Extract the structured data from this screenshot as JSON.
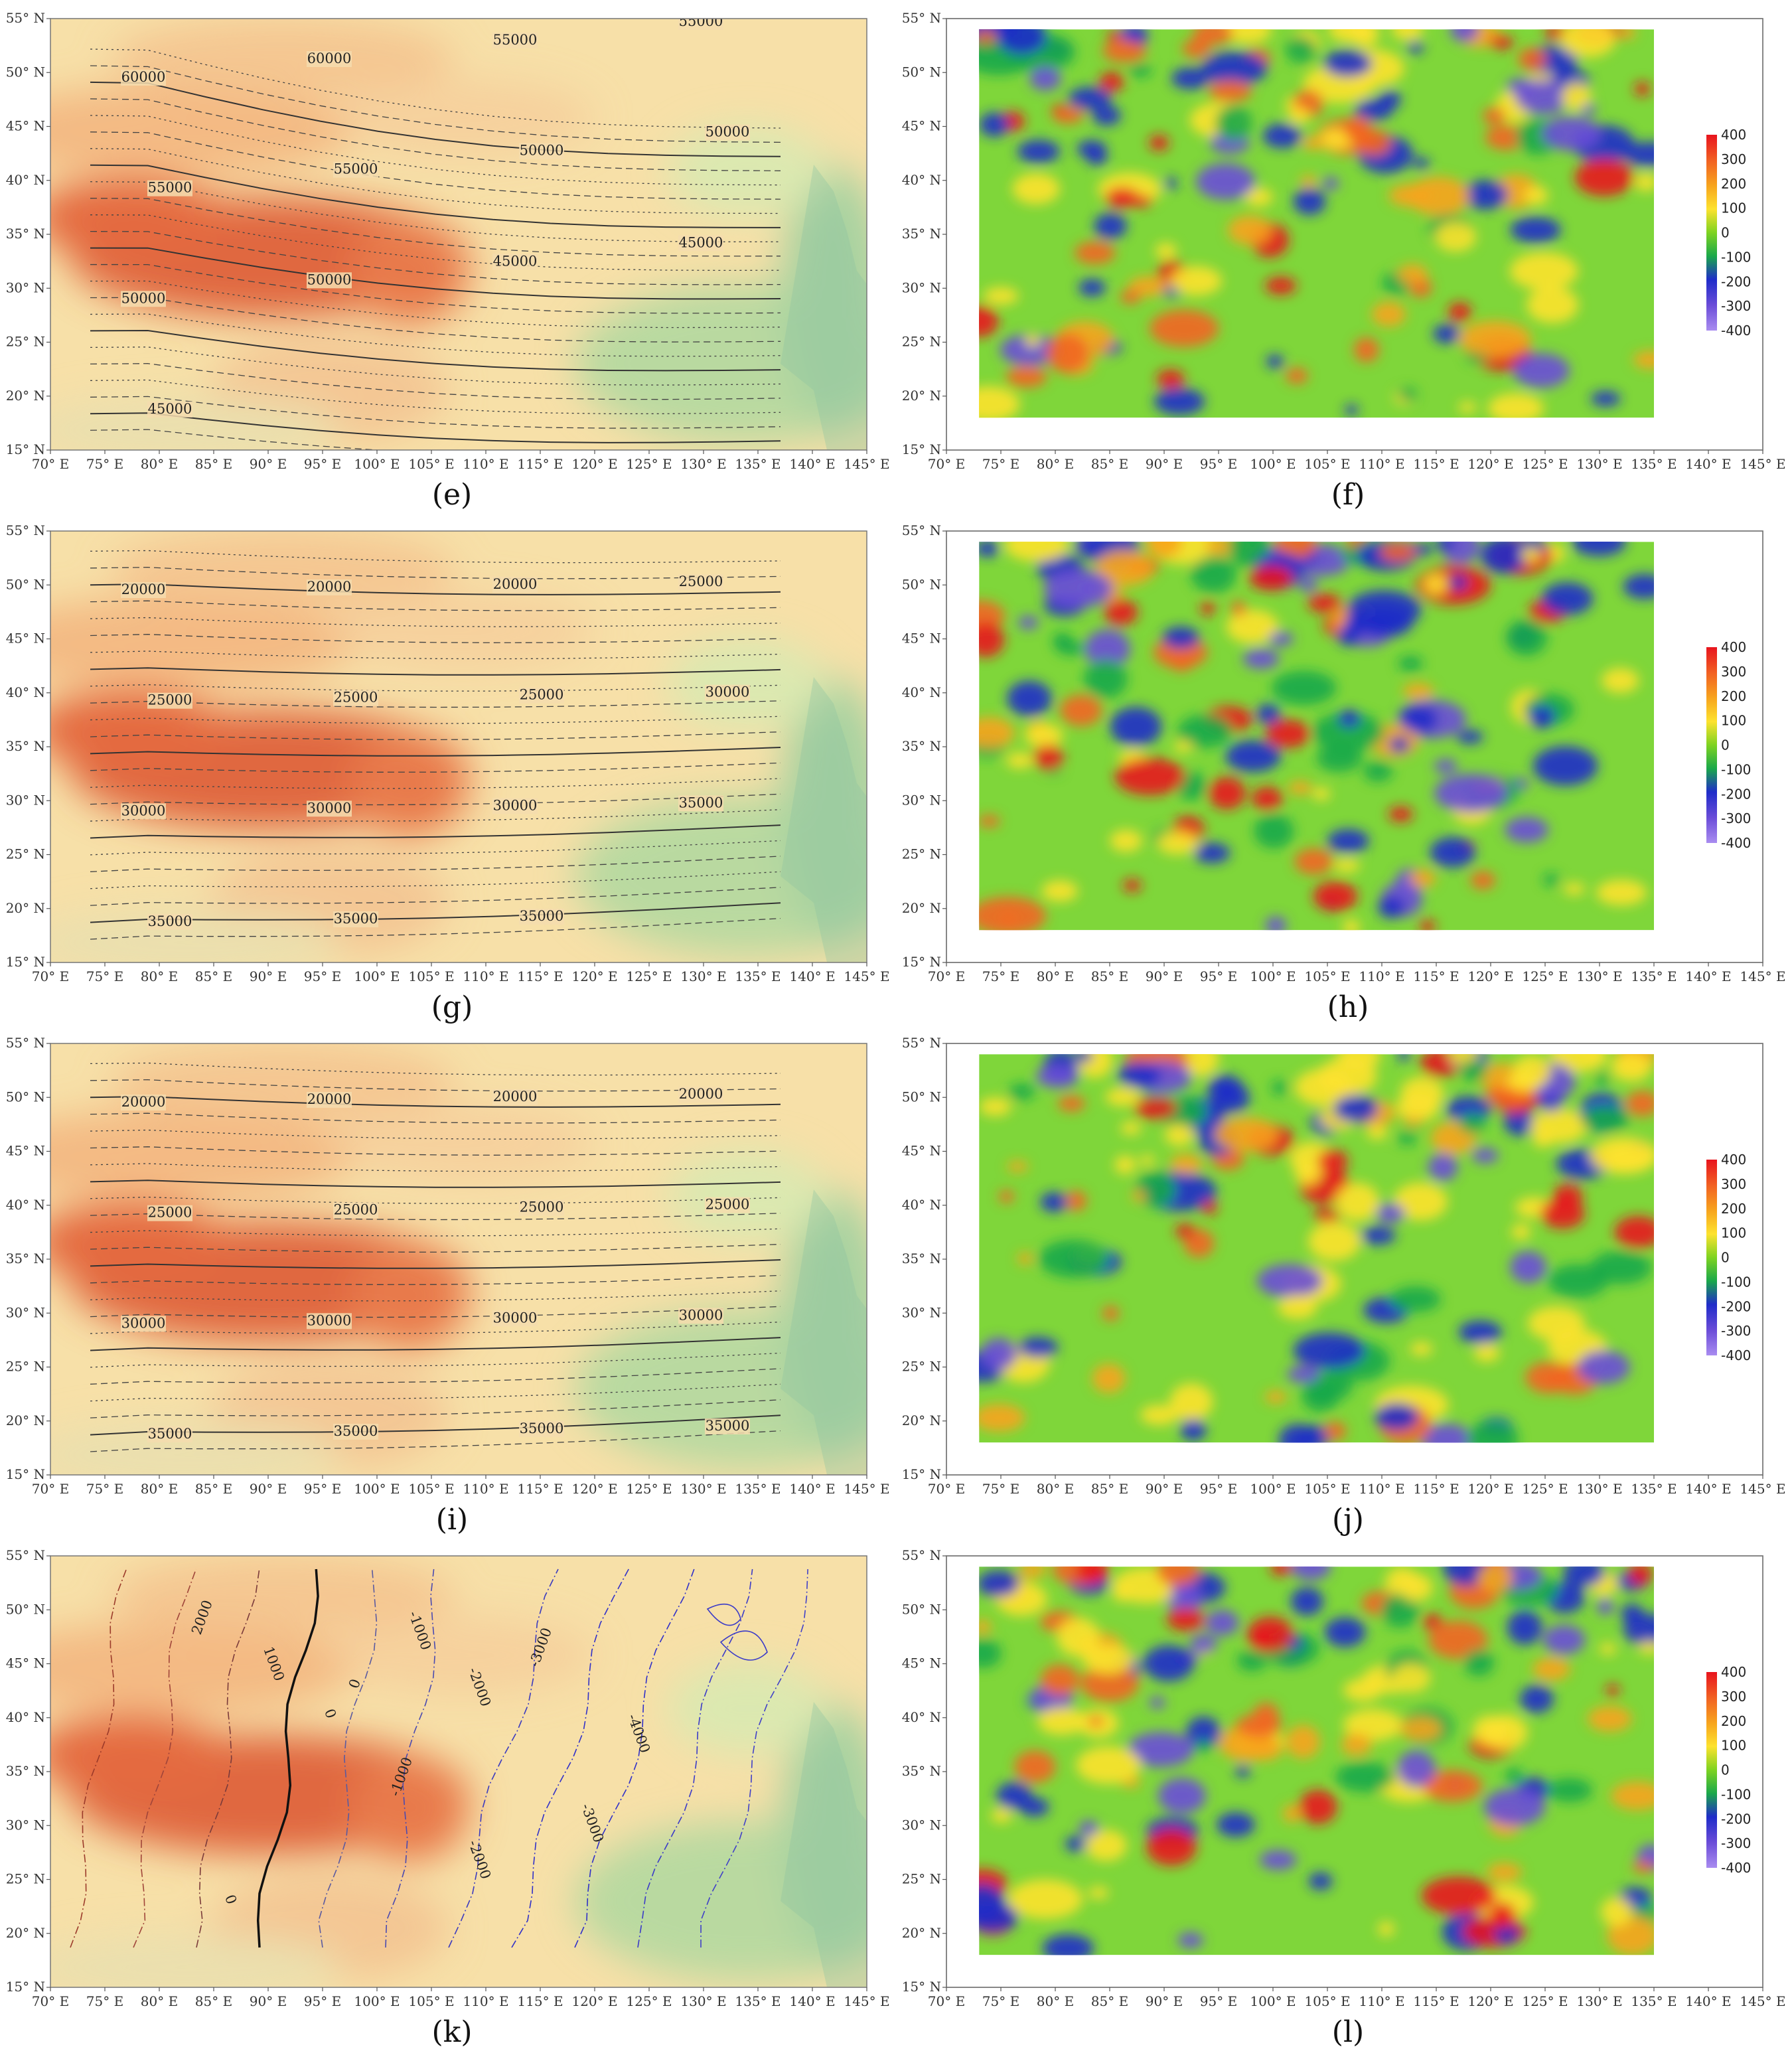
{
  "figure": {
    "lat_ticks": [
      "15° N",
      "20° N",
      "25° N",
      "30° N",
      "35° N",
      "40° N",
      "45° N",
      "50° N",
      "55° N"
    ],
    "lon_ticks": [
      "70° E",
      "75° E",
      "80° E",
      "85° E",
      "90° E",
      "95° E",
      "100° E",
      "105° E",
      "110° E",
      "115° E",
      "120° E",
      "125° E",
      "130° E",
      "135° E",
      "140° E",
      "145° E"
    ],
    "colorbar_ticks": [
      "400",
      "300",
      "200",
      "100",
      "0",
      "-100",
      "-200",
      "-300",
      "-400"
    ],
    "colorbar_colors": [
      "#e8141e",
      "#f26522",
      "#f7a41d",
      "#fde22e",
      "#7ed321",
      "#1aa84a",
      "#1f2cc9",
      "#6a4cd8",
      "#a98cf0"
    ],
    "terrain_colors": {
      "plateau": "#e0683f",
      "highland": "#f2b07a",
      "plain": "#f7e0a8",
      "lowland": "#e8eea8",
      "coast": "#a7d2a0",
      "sea": "#6bb3a6"
    }
  },
  "panels": [
    {
      "label": "(e)",
      "kind": "contour",
      "contour_labels": [
        "60000",
        "60000",
        "55000",
        "55000",
        "55000",
        "55000",
        "50000",
        "50000",
        "50000",
        "50000",
        "45000",
        "45000",
        "45000"
      ]
    },
    {
      "label": "(f)",
      "kind": "heatmap"
    },
    {
      "label": "(g)",
      "kind": "contour",
      "contour_labels": [
        "20000",
        "20000",
        "20000",
        "25000",
        "25000",
        "25000",
        "25000",
        "30000",
        "30000",
        "30000",
        "30000",
        "35000",
        "35000",
        "35000",
        "35000"
      ]
    },
    {
      "label": "(h)",
      "kind": "heatmap"
    },
    {
      "label": "(i)",
      "kind": "contour",
      "contour_labels": [
        "20000",
        "20000",
        "20000",
        "20000",
        "25000",
        "25000",
        "25000",
        "25000",
        "30000",
        "30000",
        "30000",
        "30000",
        "35000",
        "35000",
        "35000",
        "35000"
      ]
    },
    {
      "label": "(j)",
      "kind": "heatmap"
    },
    {
      "label": "(k)",
      "kind": "contour",
      "contour_labels": [
        "2000",
        "1000",
        "0",
        "0",
        "0",
        "-1000",
        "-1000",
        "-2000",
        "-2000",
        "-3000",
        "-3000",
        "-4000"
      ]
    },
    {
      "label": "(l)",
      "kind": "heatmap"
    }
  ]
}
